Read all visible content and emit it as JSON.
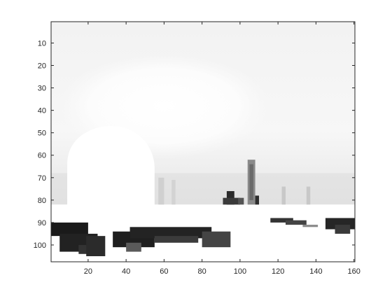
{
  "chart_data": {
    "type": "heatmap",
    "colormap": "gray",
    "title": "",
    "xlabel": "",
    "ylabel": "",
    "xlim": [
      0.5,
      160.5
    ],
    "ylim": [
      0.5,
      107.5
    ],
    "y_reversed": true,
    "x_ticks": [
      20,
      40,
      60,
      80,
      100,
      120,
      140,
      160
    ],
    "y_ticks": [
      10,
      20,
      30,
      40,
      50,
      60,
      70,
      80,
      90,
      100
    ],
    "x_tick_labels": [
      "20",
      "40",
      "60",
      "80",
      "100",
      "120",
      "140",
      "160"
    ],
    "y_tick_labels": [
      "10",
      "20",
      "30",
      "40",
      "50",
      "60",
      "70",
      "80",
      "90",
      "100"
    ],
    "grid": false,
    "colors": {
      "axis": "#262626",
      "background": "#ffffff"
    }
  }
}
